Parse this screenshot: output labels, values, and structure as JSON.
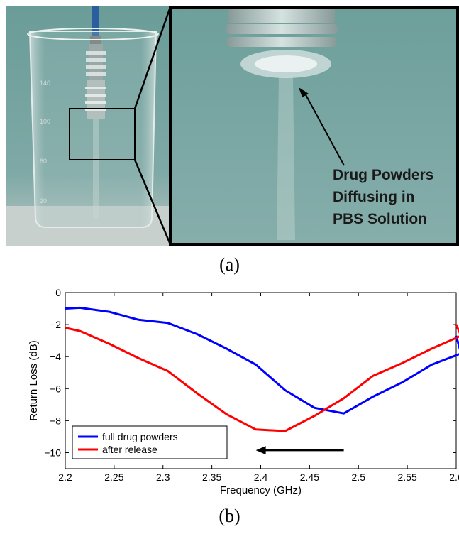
{
  "photo": {
    "beaker_marks": [
      "140",
      "100",
      "60",
      "20"
    ],
    "annotation": [
      "Drug Powders",
      "Diffusing in",
      "PBS Solution"
    ]
  },
  "captions": {
    "a": "(a)",
    "b": "(b)"
  },
  "chart_data": {
    "type": "line",
    "xlabel": "Frequency (GHz)",
    "ylabel": "Return Loss (dB)",
    "xlim": [
      2.2,
      2.6
    ],
    "ylim": [
      -11,
      0
    ],
    "xticks": [
      2.2,
      2.25,
      2.3,
      2.35,
      2.4,
      2.45,
      2.5,
      2.55,
      2.6
    ],
    "xtick_labels": [
      "2.2",
      "2.25",
      "2.3",
      "2.35",
      "2.4",
      "2.45",
      "2.5",
      "2.55",
      "2.6"
    ],
    "yticks": [
      0,
      -2,
      -4,
      -6,
      -8,
      -10
    ],
    "ytick_labels": [
      "0",
      "−2",
      "−4",
      "−6",
      "−8",
      "−10"
    ],
    "grid": false,
    "legend_position": "bottom-left",
    "series": [
      {
        "name": "full drug powders",
        "color": "#0000ff",
        "x": [
          2.2,
          2.215,
          2.245,
          2.275,
          2.305,
          2.335,
          2.365,
          2.395,
          2.425,
          2.455,
          2.485,
          2.515,
          2.545,
          2.575,
          2.605,
          2.6
        ],
        "y": [
          -1.0,
          -0.95,
          -1.2,
          -1.7,
          -1.9,
          -2.6,
          -3.5,
          -4.5,
          -6.1,
          -7.2,
          -7.55,
          -6.5,
          -5.6,
          -4.5,
          -3.8,
          -2.7
        ]
      },
      {
        "name": "after release",
        "color": "#ff0000",
        "x": [
          2.2,
          2.215,
          2.245,
          2.275,
          2.305,
          2.335,
          2.365,
          2.395,
          2.425,
          2.455,
          2.485,
          2.515,
          2.545,
          2.575,
          2.605,
          2.6
        ],
        "y": [
          -2.2,
          -2.4,
          -3.2,
          -4.1,
          -4.9,
          -6.3,
          -7.6,
          -8.55,
          -8.65,
          -7.7,
          -6.6,
          -5.2,
          -4.4,
          -3.5,
          -2.7,
          -2.0
        ]
      }
    ],
    "arrow_annotation": {
      "direction": "left",
      "from": [
        2.485,
        -9.85
      ],
      "to": [
        2.395,
        -9.85
      ]
    }
  }
}
